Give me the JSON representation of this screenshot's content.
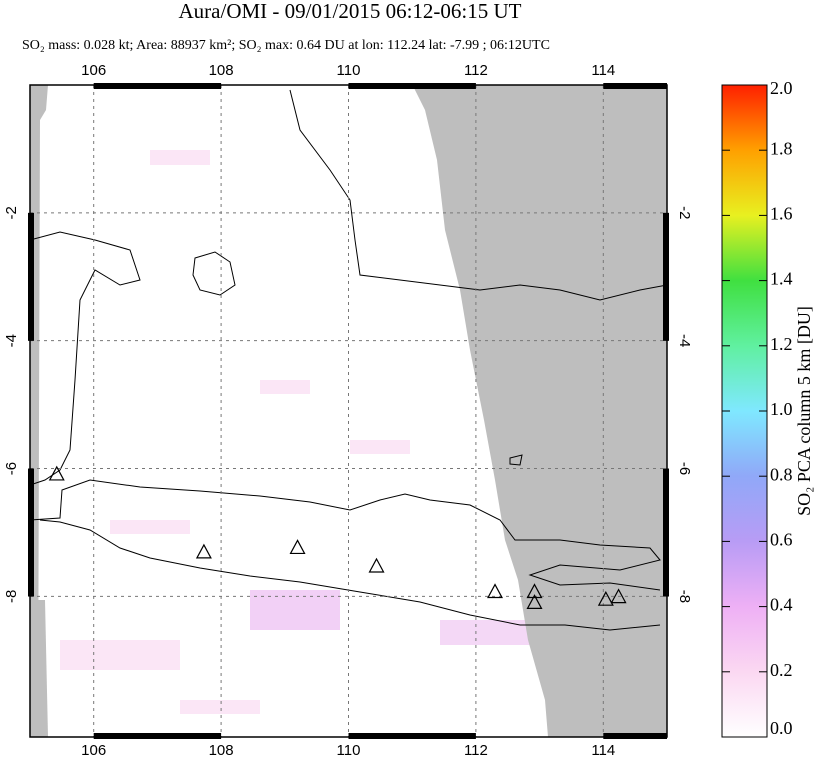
{
  "header": {
    "title": "Aura/OMI - 09/01/2015 06:12-06:15 UT",
    "subtitle": "SO₂ mass: 0.028 kt; Area: 88937 km²; SO₂ max: 0.64 DU at lon: 112.24 lat: -7.99 ; 06:12UTC"
  },
  "map": {
    "lonlim": [
      105,
      115
    ],
    "latlim": [
      0,
      -10.2
    ],
    "lonticks": [
      106,
      108,
      110,
      112,
      114
    ],
    "latticks": [
      -2,
      -4,
      -6,
      -8
    ],
    "volcanoes": {
      "lon": [
        105.42,
        107.73,
        109.2,
        110.44,
        112.3,
        112.92,
        112.92,
        114.04,
        114.24
      ],
      "lat": [
        -6.1,
        -7.32,
        -7.25,
        -7.54,
        -7.94,
        -7.94,
        -8.11,
        -8.06,
        -8.02
      ]
    }
  },
  "colorbar": {
    "title": "SO₂ PCA column 5 km [DU]",
    "lim": [
      0,
      2
    ],
    "ticks": [
      {
        "value": 0,
        "label": "0.0"
      },
      {
        "value": 0.2,
        "label": "0.2"
      },
      {
        "value": 0.4,
        "label": "0.4"
      },
      {
        "value": 0.6,
        "label": "0.6"
      },
      {
        "value": 0.8,
        "label": "0.8"
      },
      {
        "value": 1,
        "label": "1.0"
      },
      {
        "value": 1.2,
        "label": "1.2"
      },
      {
        "value": 1.4,
        "label": "1.4"
      },
      {
        "value": 1.6,
        "label": "1.6"
      },
      {
        "value": 1.8,
        "label": "1.8"
      },
      {
        "value": 2,
        "label": "2.0"
      }
    ]
  }
}
